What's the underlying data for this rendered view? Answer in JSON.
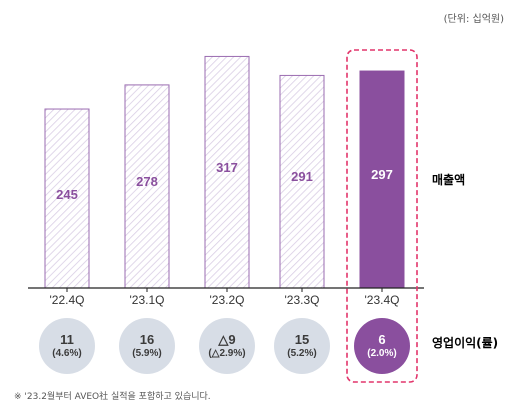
{
  "unit_note": "(단위: 십억원)",
  "footnote": "※ '23.2월부터 AVEO社 실적을 포함하고 있습니다.",
  "colors": {
    "accent": "#8a4f9e",
    "bar_outline": "#9a6bb0",
    "hatch": "#d9cde4",
    "circle_gray": "#d7dde6",
    "text_dark": "#3b3b3b",
    "highlight_border": "#e2356b"
  },
  "chart_data": {
    "type": "bar",
    "categories": [
      "'22.4Q",
      "'23.1Q",
      "'23.2Q",
      "'23.3Q",
      "'23.4Q"
    ],
    "series": [
      {
        "name": "매출액",
        "values": [
          245,
          278,
          317,
          291,
          297
        ]
      }
    ],
    "operating_profit": [
      {
        "value": "11",
        "margin": "(4.6%)"
      },
      {
        "value": "16",
        "margin": "(5.9%)"
      },
      {
        "value": "△9",
        "margin": "(△2.9%)"
      },
      {
        "value": "15",
        "margin": "(5.2%)"
      },
      {
        "value": "6",
        "margin": "(2.0%)"
      }
    ],
    "row_labels": {
      "revenue": "매출액",
      "operating_profit": "영업이익(률)"
    },
    "highlight_index": 4,
    "ylim": [
      0,
      330
    ],
    "grid": false
  }
}
